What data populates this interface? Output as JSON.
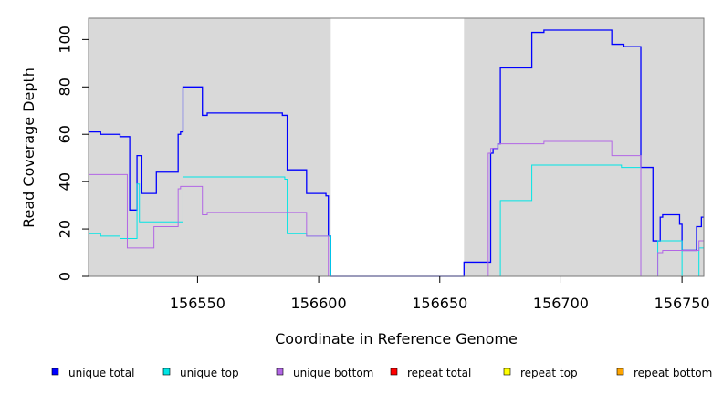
{
  "chart_data": {
    "type": "line",
    "xlabel": "Coordinate in Reference Genome",
    "ylabel": "Read Coverage Depth",
    "xlim": [
      156505,
      156759
    ],
    "ylim": [
      0,
      109
    ],
    "x_ticks": [
      156550,
      156600,
      156650,
      156700,
      156750
    ],
    "y_ticks": [
      0,
      20,
      40,
      60,
      80,
      100
    ],
    "x_tick_labels": [
      "156550",
      "156600",
      "156650",
      "156700",
      "156750"
    ],
    "y_tick_labels": [
      "0",
      "20",
      "40",
      "60",
      "80",
      "100"
    ],
    "background_color": "#d9d9d9",
    "unshaded_region": [
      156605,
      156660
    ],
    "grid": false,
    "legend_position": "bottom",
    "series": [
      {
        "name": "unique total",
        "color": "#0000ff",
        "steps": [
          [
            156505,
            61
          ],
          [
            156510,
            60
          ],
          [
            156518,
            59
          ],
          [
            156522,
            28
          ],
          [
            156525,
            51
          ],
          [
            156527,
            35
          ],
          [
            156533,
            44
          ],
          [
            156542,
            60
          ],
          [
            156543,
            61
          ],
          [
            156544,
            80
          ],
          [
            156552,
            68
          ],
          [
            156554,
            69
          ],
          [
            156585,
            68
          ],
          [
            156587,
            45
          ],
          [
            156595,
            35
          ],
          [
            156603,
            34
          ],
          [
            156604,
            17
          ],
          [
            156605,
            0
          ],
          [
            156660,
            6
          ],
          [
            156671,
            52
          ],
          [
            156672,
            54
          ],
          [
            156674,
            56
          ],
          [
            156675,
            88
          ],
          [
            156688,
            103
          ],
          [
            156693,
            104
          ],
          [
            156721,
            98
          ],
          [
            156726,
            97
          ],
          [
            156733,
            46
          ],
          [
            156738,
            15
          ],
          [
            156741,
            25
          ],
          [
            156742,
            26
          ],
          [
            156749,
            22
          ],
          [
            156750,
            11
          ],
          [
            156756,
            21
          ],
          [
            156758,
            25
          ]
        ]
      },
      {
        "name": "unique top",
        "color": "#00e5e5",
        "steps": [
          [
            156505,
            18
          ],
          [
            156510,
            17
          ],
          [
            156518,
            16
          ],
          [
            156525,
            39
          ],
          [
            156526,
            23
          ],
          [
            156544,
            42
          ],
          [
            156586,
            41
          ],
          [
            156587,
            18
          ],
          [
            156595,
            17
          ],
          [
            156605,
            0
          ],
          [
            156675,
            32
          ],
          [
            156688,
            47
          ],
          [
            156725,
            46
          ],
          [
            156733,
            0
          ],
          [
            156740,
            15
          ],
          [
            156750,
            0
          ],
          [
            156757,
            12
          ]
        ]
      },
      {
        "name": "unique bottom",
        "color": "#b266e5",
        "steps": [
          [
            156505,
            43
          ],
          [
            156521,
            12
          ],
          [
            156532,
            21
          ],
          [
            156542,
            37
          ],
          [
            156543,
            38
          ],
          [
            156552,
            26
          ],
          [
            156554,
            27
          ],
          [
            156595,
            17
          ],
          [
            156604,
            0
          ],
          [
            156660,
            0
          ],
          [
            156670,
            52
          ],
          [
            156671,
            54
          ],
          [
            156674,
            56
          ],
          [
            156693,
            57
          ],
          [
            156721,
            51
          ],
          [
            156733,
            0
          ],
          [
            156740,
            10
          ],
          [
            156742,
            11
          ],
          [
            156757,
            15
          ]
        ]
      },
      {
        "name": "repeat total",
        "color": "#ff0000",
        "steps": [
          [
            156505,
            0
          ]
        ]
      },
      {
        "name": "repeat top",
        "color": "#ffff00",
        "steps": [
          [
            156505,
            0
          ]
        ]
      },
      {
        "name": "repeat bottom",
        "color": "#ffa500",
        "steps": [
          [
            156505,
            0
          ]
        ]
      }
    ]
  }
}
